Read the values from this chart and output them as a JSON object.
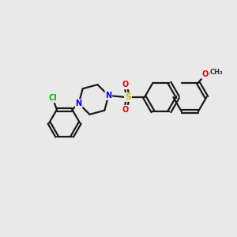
{
  "background_color": "#e9e9e9",
  "bond_color": "#1a1a1a",
  "bond_width": 1.6,
  "atom_colors": {
    "N": "#0000ee",
    "O": "#ee0000",
    "S": "#ccbb00",
    "Cl": "#00bb00"
  },
  "font_size": 7.0,
  "figsize": [
    3.0,
    3.0
  ],
  "dpi": 100
}
